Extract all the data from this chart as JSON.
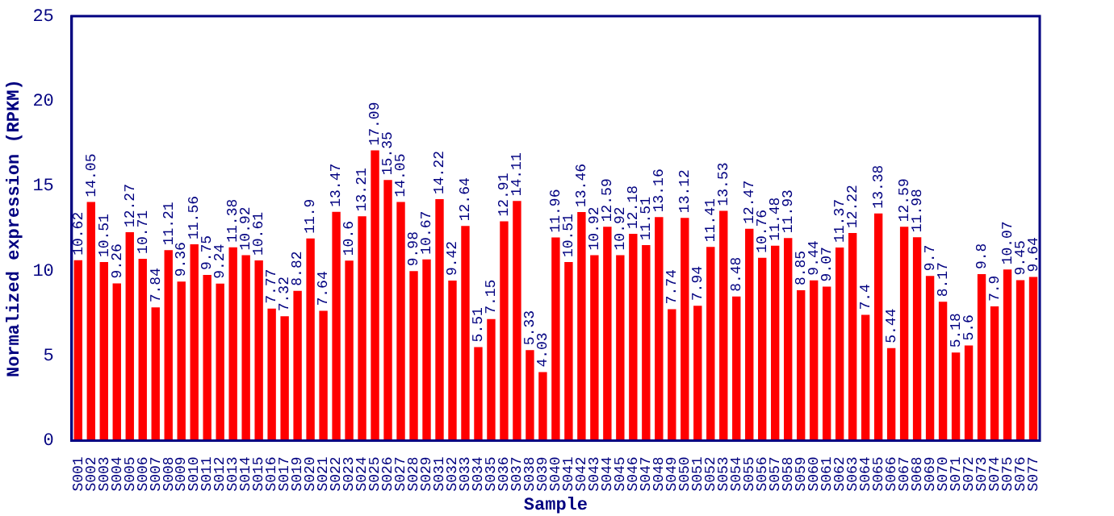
{
  "chart_data": {
    "type": "bar",
    "xlabel": "Sample",
    "ylabel": "Normalized expression (RPKM)",
    "categories": [
      "S001",
      "S002",
      "S003",
      "S004",
      "S005",
      "S006",
      "S007",
      "S008",
      "S009",
      "S010",
      "S011",
      "S012",
      "S013",
      "S014",
      "S015",
      "S016",
      "S017",
      "S019",
      "S020",
      "S021",
      "S022",
      "S023",
      "S024",
      "S025",
      "S026",
      "S027",
      "S028",
      "S029",
      "S031",
      "S032",
      "S033",
      "S034",
      "S035",
      "S036",
      "S037",
      "S038",
      "S039",
      "S040",
      "S041",
      "S042",
      "S043",
      "S044",
      "S045",
      "S046",
      "S047",
      "S048",
      "S049",
      "S050",
      "S051",
      "S052",
      "S053",
      "S054",
      "S055",
      "S056",
      "S057",
      "S058",
      "S059",
      "S060",
      "S061",
      "S062",
      "S063",
      "S064",
      "S065",
      "S066",
      "S067",
      "S068",
      "S069",
      "S070",
      "S071",
      "S072",
      "S073",
      "S074",
      "S075",
      "S076",
      "S077"
    ],
    "values": [
      10.62,
      14.05,
      10.51,
      9.26,
      12.27,
      10.71,
      7.84,
      11.21,
      9.36,
      11.56,
      9.75,
      9.24,
      11.38,
      10.92,
      10.61,
      7.77,
      7.32,
      8.82,
      11.9,
      7.64,
      13.47,
      10.6,
      13.21,
      17.09,
      15.35,
      14.05,
      9.98,
      10.67,
      14.22,
      9.42,
      12.64,
      5.51,
      7.15,
      12.91,
      14.11,
      5.33,
      4.03,
      11.96,
      10.51,
      13.46,
      10.92,
      12.59,
      10.92,
      12.18,
      11.51,
      13.16,
      7.74,
      13.12,
      7.94,
      11.41,
      13.53,
      8.48,
      12.47,
      10.76,
      11.48,
      11.93,
      8.85,
      9.44,
      9.07,
      11.37,
      12.22,
      7.4,
      13.38,
      5.44,
      12.59,
      11.98,
      9.7,
      8.17,
      5.18,
      5.6,
      9.8,
      7.9,
      10.07,
      9.45,
      9.64
    ],
    "color": "#ff0000",
    "ylim": [
      0,
      25
    ],
    "yticks": [
      0,
      5,
      10,
      15,
      20,
      25
    ],
    "grid": false,
    "legend": false,
    "data_labels": true
  }
}
